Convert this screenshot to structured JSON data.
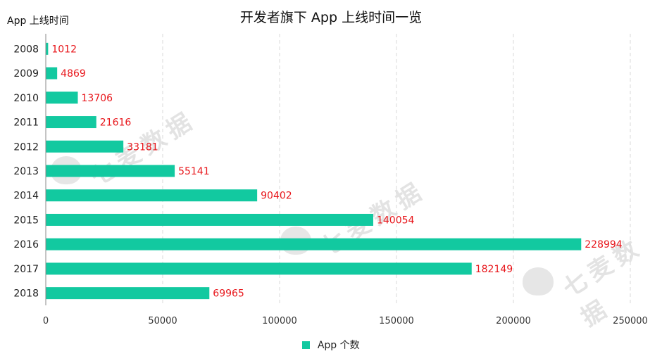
{
  "chart_data": {
    "type": "bar",
    "orientation": "horizontal",
    "title": "开发者旗下 App 上线时间一览",
    "ylabel": "App 上线时间",
    "xlabel": "",
    "categories": [
      "2008",
      "2009",
      "2010",
      "2011",
      "2012",
      "2013",
      "2014",
      "2015",
      "2016",
      "2017",
      "2018"
    ],
    "series": [
      {
        "name": "App 个数",
        "values": [
          1012,
          4869,
          13706,
          21616,
          33181,
          55141,
          90402,
          140054,
          228994,
          182149,
          69965
        ]
      }
    ],
    "xlim": [
      0,
      250000
    ],
    "x_ticks": [
      0,
      50000,
      100000,
      150000,
      200000,
      250000
    ],
    "grid": "vertical dashed",
    "legend_position": "bottom-center",
    "data_labels": true,
    "colors": {
      "bar": "#12c9a0",
      "label": "#e8161b",
      "grid": "#d9d9d9",
      "axis": "#888888"
    }
  },
  "watermark": {
    "text": "七麦数据"
  }
}
